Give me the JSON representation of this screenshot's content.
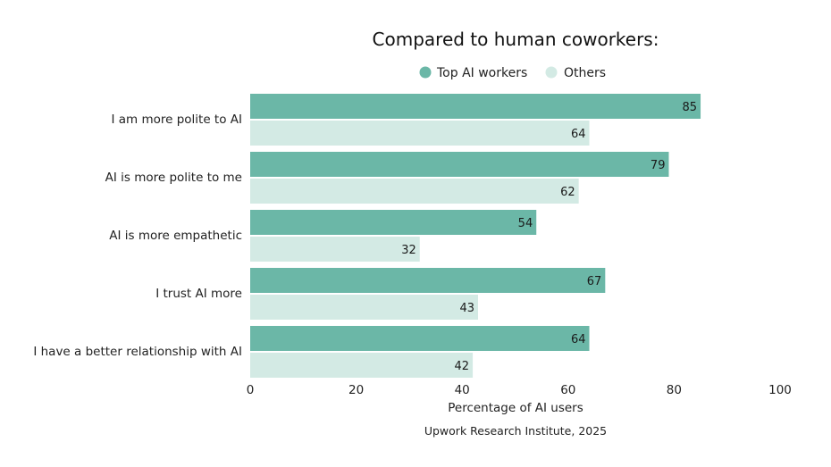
{
  "chart_data": {
    "type": "bar",
    "orientation": "horizontal",
    "title": "Compared to human coworkers:",
    "categories": [
      "I am more polite to AI",
      "AI is more polite to me",
      "AI is more empathetic",
      "I trust AI more",
      "I have a better relationship with AI"
    ],
    "series": [
      {
        "name": "Top AI workers",
        "color": "#6bb7a7",
        "values": [
          85,
          79,
          54,
          67,
          64
        ]
      },
      {
        "name": "Others",
        "color": "#d3eae4",
        "values": [
          64,
          62,
          32,
          43,
          42
        ]
      }
    ],
    "xlabel": "Percentage of AI users",
    "ylabel": "",
    "xlim": [
      0,
      100
    ],
    "xticks": [
      0,
      20,
      40,
      60,
      80,
      100
    ],
    "legend_position": "top",
    "grid": false,
    "source": "Upwork Research Institute, 2025"
  }
}
